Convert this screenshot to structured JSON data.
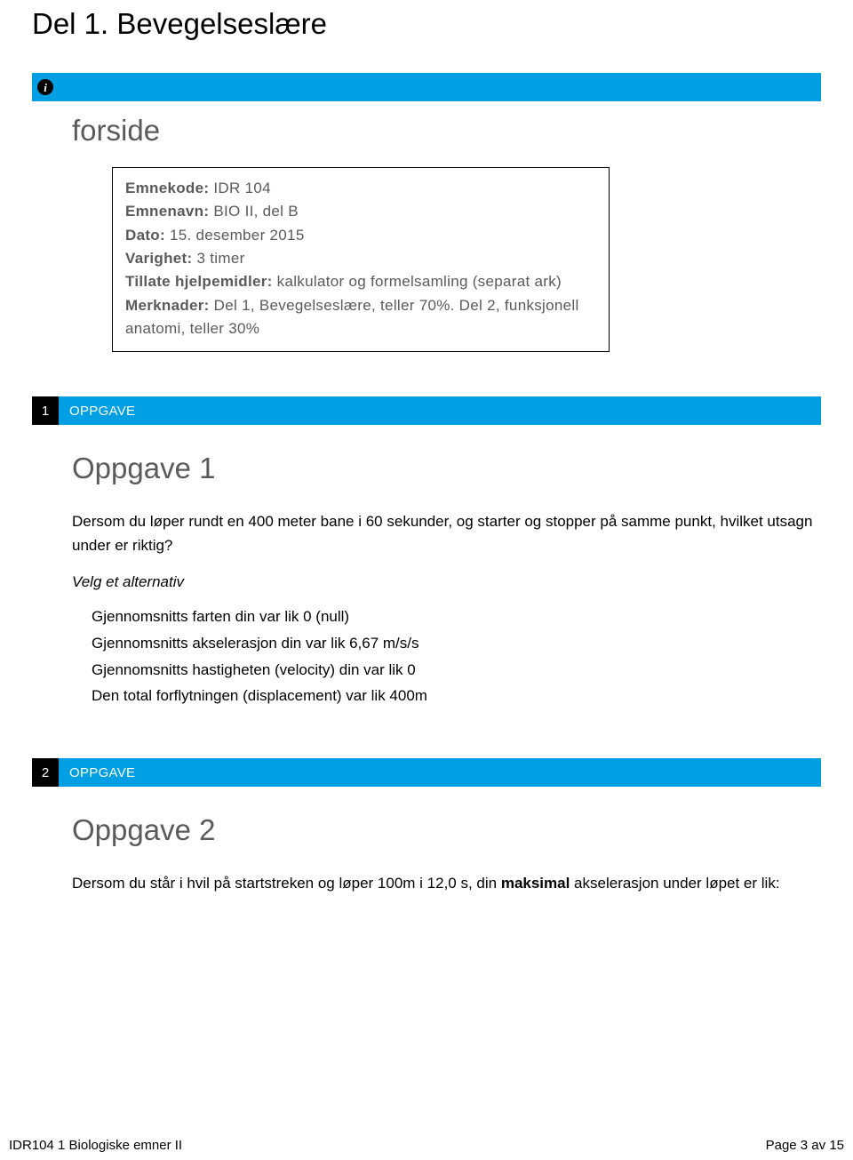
{
  "colors": {
    "accent": "#009ee2",
    "black": "#000000",
    "grey_text": "#5a5a5a",
    "white": "#ffffff"
  },
  "section_title": "Del 1. Bevegelseslære",
  "info_icon_glyph": "i",
  "forside": {
    "heading": "forside",
    "lines": [
      {
        "label": "Emnekode:",
        "value": " IDR 104"
      },
      {
        "label": "Emnenavn:",
        "value": " BIO II, del B"
      },
      {
        "label": "Dato:",
        "value": " 15. desember 2015"
      },
      {
        "label": "Varighet:",
        "value": " 3 timer"
      },
      {
        "label": "Tillate hjelpemidler:",
        "value": " kalkulator og formelsamling (separat ark)"
      },
      {
        "label": "Merknader:",
        "value": "  Del 1, Bevegelseslære, teller 70%. Del 2, funksjonell anatomi, teller 30%"
      }
    ]
  },
  "tasks": [
    {
      "number": "1",
      "bar_label": "OPPGAVE",
      "heading": "Oppgave 1",
      "text": "Dersom du løper rundt en 400 meter bane i 60 sekunder, og starter og stopper på samme punkt, hvilket utsagn under er riktig?",
      "instruction": "Velg et alternativ",
      "options": [
        "Gjennomsnitts farten din var lik 0 (null)",
        "Gjennomsnitts akselerasjon din var lik 6,67 m/s/s",
        "Gjennomsnitts hastigheten (velocity) din var lik 0",
        "Den total forflytningen (displacement) var lik 400m"
      ]
    },
    {
      "number": "2",
      "bar_label": "OPPGAVE",
      "heading": "Oppgave 2",
      "text_parts": {
        "before": "Dersom du står i hvil på startstreken og løper 100m i 12,0 s,  din ",
        "bold": "maksimal",
        "after": " akselerasjon under løpet er lik:"
      }
    }
  ],
  "footer": {
    "left": "IDR104 1 Biologiske emner II",
    "right": "Page 3 av 15"
  }
}
